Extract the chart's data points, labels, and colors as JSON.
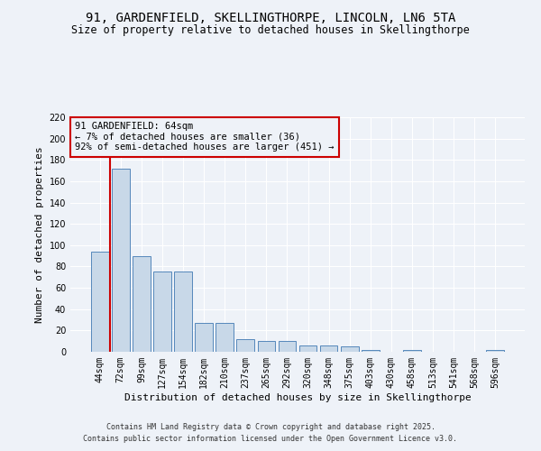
{
  "title1": "91, GARDENFIELD, SKELLINGTHORPE, LINCOLN, LN6 5TA",
  "title2": "Size of property relative to detached houses in Skellingthorpe",
  "xlabel": "Distribution of detached houses by size in Skellingthorpe",
  "ylabel": "Number of detached properties",
  "categories": [
    "44sqm",
    "72sqm",
    "99sqm",
    "127sqm",
    "154sqm",
    "182sqm",
    "210sqm",
    "237sqm",
    "265sqm",
    "292sqm",
    "320sqm",
    "348sqm",
    "375sqm",
    "403sqm",
    "430sqm",
    "458sqm",
    "513sqm",
    "541sqm",
    "568sqm",
    "596sqm"
  ],
  "values": [
    94,
    172,
    90,
    75,
    75,
    27,
    27,
    12,
    10,
    10,
    6,
    6,
    5,
    2,
    0,
    2,
    0,
    0,
    0,
    2
  ],
  "bar_color": "#c8d8e8",
  "bar_edge_color": "#5588bb",
  "vline_color": "#cc0000",
  "annotation_box_text": "91 GARDENFIELD: 64sqm\n← 7% of detached houses are smaller (36)\n92% of semi-detached houses are larger (451) →",
  "annotation_box_color": "#cc0000",
  "ylim": [
    0,
    220
  ],
  "yticks": [
    0,
    20,
    40,
    60,
    80,
    100,
    120,
    140,
    160,
    180,
    200,
    220
  ],
  "bg_color": "#eef2f8",
  "grid_color": "#ffffff",
  "footer1": "Contains HM Land Registry data © Crown copyright and database right 2025.",
  "footer2": "Contains public sector information licensed under the Open Government Licence v3.0.",
  "title_fontsize": 10,
  "subtitle_fontsize": 8.5,
  "axis_label_fontsize": 8,
  "tick_fontsize": 7,
  "annotation_fontsize": 7.5,
  "footer_fontsize": 6
}
